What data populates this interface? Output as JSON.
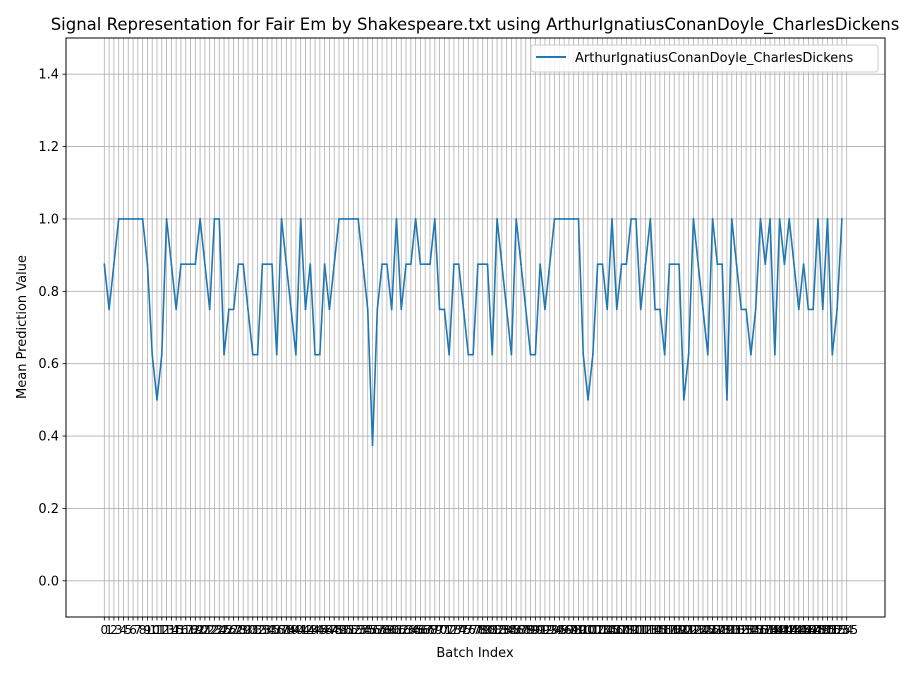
{
  "chart_data": {
    "type": "line",
    "title": "Signal Representation for Fair Em by Shakespeare.txt using ArthurIgnatiusConanDoyle_CharlesDickens",
    "xlabel": "Batch Index",
    "ylabel": "Mean Prediction Value",
    "xlim": [
      -8,
      163
    ],
    "ylim": [
      -0.1,
      1.5
    ],
    "yticks": [
      0.0,
      0.2,
      0.4,
      0.6,
      0.8,
      1.0,
      1.2,
      1.4
    ],
    "ytick_labels": [
      "0.0",
      "0.2",
      "0.4",
      "0.6",
      "0.8",
      "1.0",
      "1.2",
      "1.4"
    ],
    "x_tick_count": 156,
    "grid": true,
    "legend_position": "top-right",
    "series": [
      {
        "name": "ArthurIgnatiusConanDoyle_CharlesDickens",
        "color": "#1f77b4",
        "values": [
          0.875,
          0.75,
          0.875,
          1,
          1,
          1,
          1,
          1,
          1,
          0.875,
          0.625,
          0.5,
          0.625,
          1,
          0.875,
          0.75,
          0.875,
          0.875,
          0.875,
          0.875,
          1,
          0.875,
          0.75,
          1,
          1,
          0.625,
          0.75,
          0.75,
          0.875,
          0.875,
          0.75,
          0.625,
          0.625,
          0.875,
          0.875,
          0.875,
          0.625,
          1,
          0.875,
          0.75,
          0.625,
          1,
          0.75,
          0.875,
          0.625,
          0.625,
          0.875,
          0.75,
          0.875,
          1,
          1,
          1,
          1,
          1,
          0.875,
          0.75,
          0.375,
          0.75,
          0.875,
          0.875,
          0.75,
          1,
          0.75,
          0.875,
          0.875,
          1,
          0.875,
          0.875,
          0.875,
          1,
          0.75,
          0.75,
          0.625,
          0.875,
          0.875,
          0.75,
          0.625,
          0.625,
          0.875,
          0.875,
          0.875,
          0.625,
          1,
          0.875,
          0.75,
          0.625,
          1,
          0.875,
          0.75,
          0.625,
          0.625,
          0.875,
          0.75,
          0.875,
          1,
          1,
          1,
          1,
          1,
          1,
          0.625,
          0.5,
          0.625,
          0.875,
          0.875,
          0.75,
          1,
          0.75,
          0.875,
          0.875,
          1,
          1,
          0.75,
          0.875,
          1,
          0.75,
          0.75,
          0.625,
          0.875,
          0.875,
          0.875,
          0.5,
          0.625,
          1,
          0.875,
          0.75,
          0.625,
          1,
          0.875,
          0.875,
          0.5,
          1,
          0.875,
          0.75,
          0.75,
          0.625,
          0.75,
          1,
          0.875,
          1,
          0.625,
          1,
          0.875,
          1,
          0.875,
          0.75,
          0.875,
          0.75,
          0.75,
          1,
          0.75,
          1,
          0.625,
          0.75,
          1
        ]
      }
    ]
  }
}
